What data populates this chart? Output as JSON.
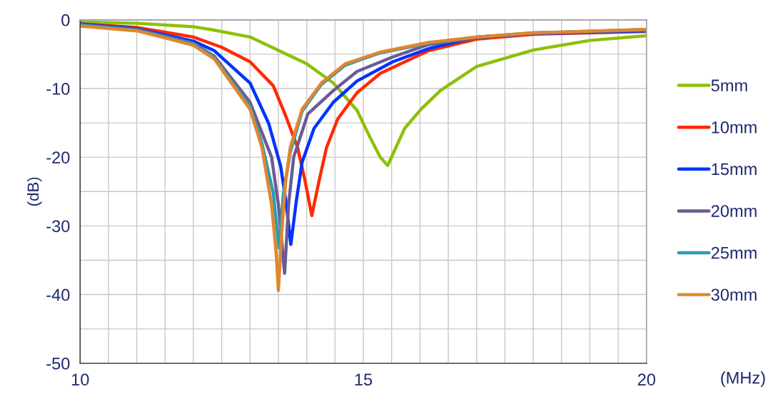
{
  "chart_data": {
    "type": "line",
    "xlabel": "(MHz)",
    "ylabel": "(dB)",
    "xlim": [
      10,
      20
    ],
    "ylim": [
      -50,
      0
    ],
    "xticks": [
      10,
      {
        "value": 10.5,
        "label": null
      },
      {
        "value": 11,
        "label": null
      },
      {
        "value": 11.5,
        "label": null
      },
      {
        "value": 12,
        "label": null
      },
      {
        "value": 12.5,
        "label": null
      },
      {
        "value": 13,
        "label": null
      },
      {
        "value": 13.5,
        "label": null
      },
      {
        "value": 14,
        "label": null
      },
      {
        "value": 14.5,
        "label": null
      },
      15,
      {
        "value": 15.5,
        "label": null
      },
      {
        "value": 16,
        "label": null
      },
      {
        "value": 16.5,
        "label": null
      },
      {
        "value": 17,
        "label": null
      },
      {
        "value": 17.5,
        "label": null
      },
      {
        "value": 18,
        "label": null
      },
      {
        "value": 18.5,
        "label": null
      },
      {
        "value": 19,
        "label": null
      },
      {
        "value": 19.5,
        "label": null
      },
      20
    ],
    "yticks": [
      -50,
      {
        "value": -45,
        "label": null
      },
      -40,
      {
        "value": -35,
        "label": null
      },
      -30,
      {
        "value": -25,
        "label": null
      },
      -20,
      {
        "value": -15,
        "label": null
      },
      -10,
      {
        "value": -5,
        "label": null
      },
      0
    ],
    "grid": true,
    "legend": "right",
    "line_style": "solid",
    "marker": "none",
    "series": [
      {
        "name": "5mm",
        "color": "#8cc10a",
        "x": [
          10,
          11,
          12,
          12.37,
          13,
          14,
          14.47,
          14.89,
          15.1,
          15.3,
          15.43,
          15.73,
          16.02,
          16.36,
          17,
          18,
          19,
          20
        ],
        "values": [
          -0.3,
          -0.5,
          -1.0,
          -1.5,
          -2.5,
          -6.4,
          -9.2,
          -13.2,
          -16.8,
          -20,
          -21.2,
          -15.8,
          -13,
          -10.3,
          -6.8,
          -4.4,
          -3.0,
          -2.3
        ]
      },
      {
        "name": "10mm",
        "color": "#ff2a00",
        "x": [
          10,
          11,
          12,
          12.5,
          13,
          13.41,
          13.63,
          13.84,
          13.97,
          14.09,
          14.22,
          14.35,
          14.55,
          14.89,
          15.3,
          16.15,
          17,
          18,
          20
        ],
        "values": [
          -0.6,
          -1.1,
          -2.5,
          -4.0,
          -6.1,
          -9.6,
          -14.0,
          -18.6,
          -23.4,
          -28.5,
          -23.4,
          -18.6,
          -14.4,
          -10.6,
          -7.8,
          -4.5,
          -2.8,
          -2.1,
          -1.7
        ]
      },
      {
        "name": "15mm",
        "color": "#0033ff",
        "x": [
          10,
          11,
          12,
          12.37,
          13,
          13.33,
          13.54,
          13.63,
          13.72,
          13.82,
          13.92,
          14.13,
          14.47,
          14.89,
          15.52,
          16.15,
          17,
          18,
          20
        ],
        "values": [
          -0.6,
          -1.3,
          -3.1,
          -4.5,
          -9.2,
          -15.1,
          -21.3,
          -26.2,
          -32.7,
          -26.2,
          -20.7,
          -15.8,
          -12,
          -8.9,
          -6.1,
          -4.2,
          -2.5,
          -2.0,
          -1.6
        ]
      },
      {
        "name": "20mm",
        "color": "#6a5a96",
        "x": [
          10,
          11,
          12,
          12.37,
          13,
          13.38,
          13.5,
          13.61,
          13.68,
          13.77,
          14.02,
          14.47,
          14.89,
          15.52,
          16.15,
          17,
          18,
          20
        ],
        "values": [
          -0.7,
          -1.4,
          -3.4,
          -5.3,
          -12,
          -20,
          -26.9,
          -36.9,
          -26.9,
          -20,
          -13.7,
          -10.3,
          -7.5,
          -5.4,
          -3.6,
          -2.6,
          -2.0,
          -1.5
        ]
      },
      {
        "name": "25mm",
        "color": "#2e9bb0",
        "x": [
          10,
          11,
          12,
          12.37,
          13,
          13.21,
          13.41,
          13.51,
          13.59,
          13.71,
          13.92,
          14.26,
          14.68,
          15.3,
          16.15,
          17,
          18,
          20
        ],
        "values": [
          -0.8,
          -1.5,
          -3.5,
          -5.5,
          -12.6,
          -18,
          -25.2,
          -33.2,
          -25.2,
          -19.3,
          -13.3,
          -9.4,
          -6.6,
          -4.8,
          -3.4,
          -2.5,
          -1.9,
          -1.4
        ]
      },
      {
        "name": "30mm",
        "color": "#e0862e",
        "x": [
          10,
          11,
          12,
          12.37,
          13,
          13.21,
          13.38,
          13.46,
          13.5,
          13.56,
          13.63,
          13.71,
          13.92,
          14.26,
          14.68,
          15.3,
          16.15,
          17,
          18,
          20
        ],
        "values": [
          -0.9,
          -1.6,
          -3.7,
          -5.7,
          -13,
          -18.6,
          -26.9,
          -33.8,
          -39.4,
          -30.9,
          -23.4,
          -18.6,
          -13,
          -9.2,
          -6.4,
          -4.7,
          -3.3,
          -2.5,
          -1.9,
          -1.4
        ]
      }
    ]
  }
}
